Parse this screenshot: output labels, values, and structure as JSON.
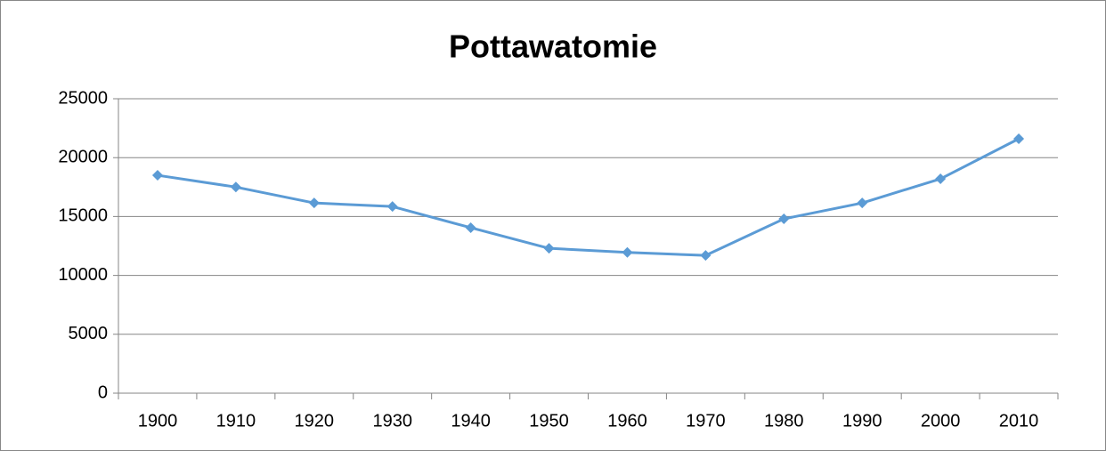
{
  "chart_data": {
    "type": "line",
    "title": "Pottawatomie",
    "categories": [
      "1900",
      "1910",
      "1920",
      "1930",
      "1940",
      "1950",
      "1960",
      "1970",
      "1980",
      "1990",
      "2000",
      "2010"
    ],
    "series": [
      {
        "name": "Pottawatomie",
        "color": "#5b9bd5",
        "values": [
          18500,
          17500,
          16150,
          15850,
          14050,
          12300,
          11950,
          11700,
          14800,
          16150,
          18200,
          21600
        ]
      }
    ],
    "ylim": [
      0,
      25000
    ],
    "yticks": [
      0,
      5000,
      10000,
      15000,
      20000,
      25000
    ],
    "grid": true,
    "legend": false
  }
}
